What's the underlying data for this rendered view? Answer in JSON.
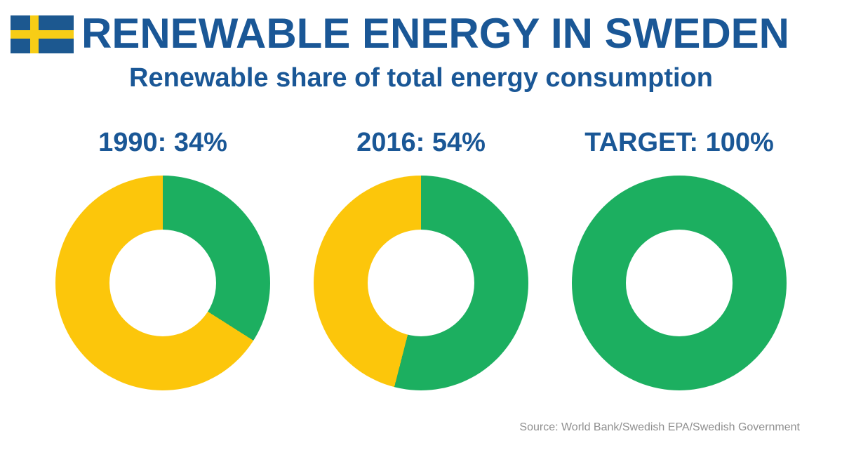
{
  "header": {
    "title": "RENEWABLE ENERGY IN SWEDEN",
    "subtitle": "Renewable share of total energy consumption",
    "flag": "sweden"
  },
  "footer": {
    "source": "Source: World Bank/Swedish EPA/Swedish Government"
  },
  "colors": {
    "text_blue": "#1A5796",
    "renewable_green": "#1CAF60",
    "non_renewable_yellow": "#FCC60B",
    "flag_blue": "#1C5890",
    "flag_yellow": "#F7CD16",
    "source_gray": "#8F8F8F",
    "background": "#FFFFFF"
  },
  "chart_data": {
    "type": "pie",
    "subtype": "donut",
    "title": "Renewable share of total energy consumption",
    "start_angle": "12 o'clock, clockwise, renewable slice first",
    "colors": {
      "renewable": "#1CAF60",
      "non_renewable": "#FCC60B"
    },
    "charts": [
      {
        "id": "1990",
        "label": "1990: 34%",
        "renewable_pct": 34,
        "non_renewable_pct": 66
      },
      {
        "id": "2016",
        "label": "2016: 54%",
        "renewable_pct": 54,
        "non_renewable_pct": 46
      },
      {
        "id": "target",
        "label": "TARGET: 100%",
        "renewable_pct": 100,
        "non_renewable_pct": 0
      }
    ]
  }
}
